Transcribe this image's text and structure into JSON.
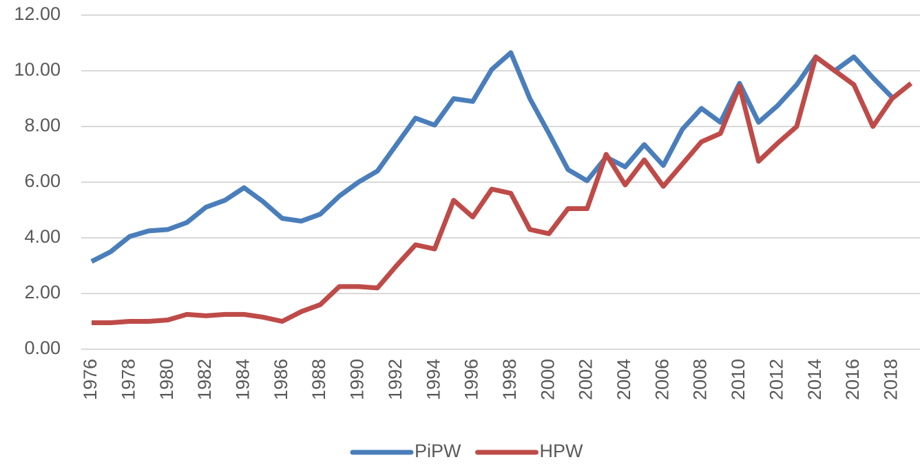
{
  "chart_data": {
    "type": "line",
    "categories": [
      "1976",
      null,
      "1978",
      null,
      "1980",
      null,
      "1982",
      null,
      "1984",
      null,
      "1986",
      null,
      "1988",
      null,
      "1990",
      null,
      "1992",
      null,
      "1994",
      null,
      "1996",
      null,
      "1998",
      null,
      "2000",
      null,
      "2002",
      null,
      "2004",
      null,
      "2006",
      null,
      "2008",
      null,
      "2010",
      null,
      "2012",
      null,
      "2014",
      null,
      "2016",
      null,
      "2018",
      null
    ],
    "series": [
      {
        "name": "PiPW",
        "color": "#4a7ebb",
        "values": [
          3.15,
          3.5,
          4.05,
          4.25,
          4.3,
          4.55,
          5.1,
          5.35,
          5.8,
          5.3,
          4.7,
          4.6,
          4.85,
          5.5,
          6.0,
          6.4,
          7.35,
          8.3,
          8.05,
          9.0,
          8.9,
          10.05,
          10.65,
          9.0,
          7.75,
          6.45,
          6.05,
          6.9,
          6.55,
          7.35,
          6.6,
          7.9,
          8.65,
          8.15,
          9.55,
          8.15,
          8.75,
          9.5,
          10.5,
          10.0,
          10.5,
          9.75,
          9.05,
          null
        ]
      },
      {
        "name": "HPW",
        "color": "#be4b48",
        "values": [
          0.95,
          0.95,
          1.0,
          1.0,
          1.05,
          1.25,
          1.2,
          1.25,
          1.25,
          1.15,
          1.0,
          1.35,
          1.6,
          2.25,
          2.25,
          2.2,
          3.0,
          3.75,
          3.6,
          5.35,
          4.75,
          5.75,
          5.6,
          4.3,
          4.15,
          5.05,
          5.05,
          7.0,
          5.9,
          6.8,
          5.85,
          6.65,
          7.45,
          7.75,
          9.45,
          6.75,
          7.4,
          8.0,
          10.5,
          10.0,
          9.5,
          8.0,
          9.0,
          9.55
        ]
      }
    ],
    "ylim": [
      0,
      12
    ],
    "yticks": [
      {
        "value": 0,
        "label": "0.00"
      },
      {
        "value": 2,
        "label": "2.00"
      },
      {
        "value": 4,
        "label": "4.00"
      },
      {
        "value": 6,
        "label": "6.00"
      },
      {
        "value": 8,
        "label": "8.00"
      },
      {
        "value": 10,
        "label": "10.00"
      },
      {
        "value": 12,
        "label": "12.00"
      }
    ],
    "grid": true,
    "legend": "bottom"
  }
}
